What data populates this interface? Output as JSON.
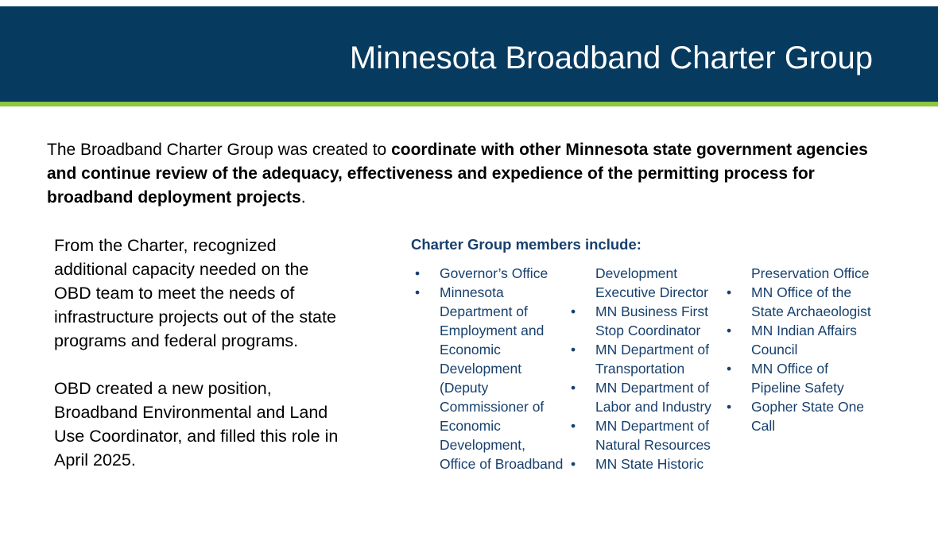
{
  "slide": {
    "title": "Minnesota Broadband Charter Group",
    "intro": {
      "plain_start": "The Broadband Charter Group was created to ",
      "bold": "coordinate with other Minnesota state government agencies and continue review of the adequacy, effectiveness and expedience of the permitting process for broadband deployment projects",
      "plain_end": "."
    },
    "left": {
      "paragraph1": "From the Charter, recognized additional capacity needed on the OBD team to meet the needs of infrastructure projects out of the state programs and federal programs.",
      "paragraph2": "OBD created a new position, Broadband Environmental and Land Use Coordinator, and filled this role in April 2025."
    },
    "members": {
      "heading": "Charter Group members include:",
      "columns": [
        [
          {
            "bullet": true,
            "text": "Governor’s Office"
          },
          {
            "bullet": true,
            "text": "Minnesota"
          },
          {
            "bullet": false,
            "text": "Department of"
          },
          {
            "bullet": false,
            "text": "Employment and"
          },
          {
            "bullet": false,
            "text": "Economic"
          },
          {
            "bullet": false,
            "text": "Development"
          },
          {
            "bullet": false,
            "text": "(Deputy"
          },
          {
            "bullet": false,
            "text": "Commissioner of"
          },
          {
            "bullet": false,
            "text": "Economic"
          },
          {
            "bullet": false,
            "text": "Development,"
          },
          {
            "bullet": false,
            "text": "Office of Broadband"
          }
        ],
        [
          {
            "bullet": false,
            "text": "Development"
          },
          {
            "bullet": false,
            "text": "Executive Director"
          },
          {
            "bullet": true,
            "text": "MN Business First"
          },
          {
            "bullet": false,
            "text": "Stop Coordinator"
          },
          {
            "bullet": true,
            "text": "MN Department of"
          },
          {
            "bullet": false,
            "text": "Transportation"
          },
          {
            "bullet": true,
            "text": "MN Department of"
          },
          {
            "bullet": false,
            "text": "Labor and Industry"
          },
          {
            "bullet": true,
            "text": "MN Department of"
          },
          {
            "bullet": false,
            "text": "Natural Resources"
          },
          {
            "bullet": true,
            "text": "MN State Historic"
          }
        ],
        [
          {
            "bullet": false,
            "text": "Preservation Office"
          },
          {
            "bullet": true,
            "text": "MN Office of the"
          },
          {
            "bullet": false,
            "text": "State Archaeologist"
          },
          {
            "bullet": true,
            "text": "MN Indian Affairs"
          },
          {
            "bullet": false,
            "text": "Council"
          },
          {
            "bullet": true,
            "text": "MN Office of"
          },
          {
            "bullet": false,
            "text": "Pipeline Safety"
          },
          {
            "bullet": true,
            "text": "Gopher State One"
          },
          {
            "bullet": false,
            "text": "Call"
          }
        ]
      ]
    },
    "colors": {
      "header": "#073a5f",
      "stripe": "#8dc63f",
      "member_text": "#17406d"
    }
  }
}
